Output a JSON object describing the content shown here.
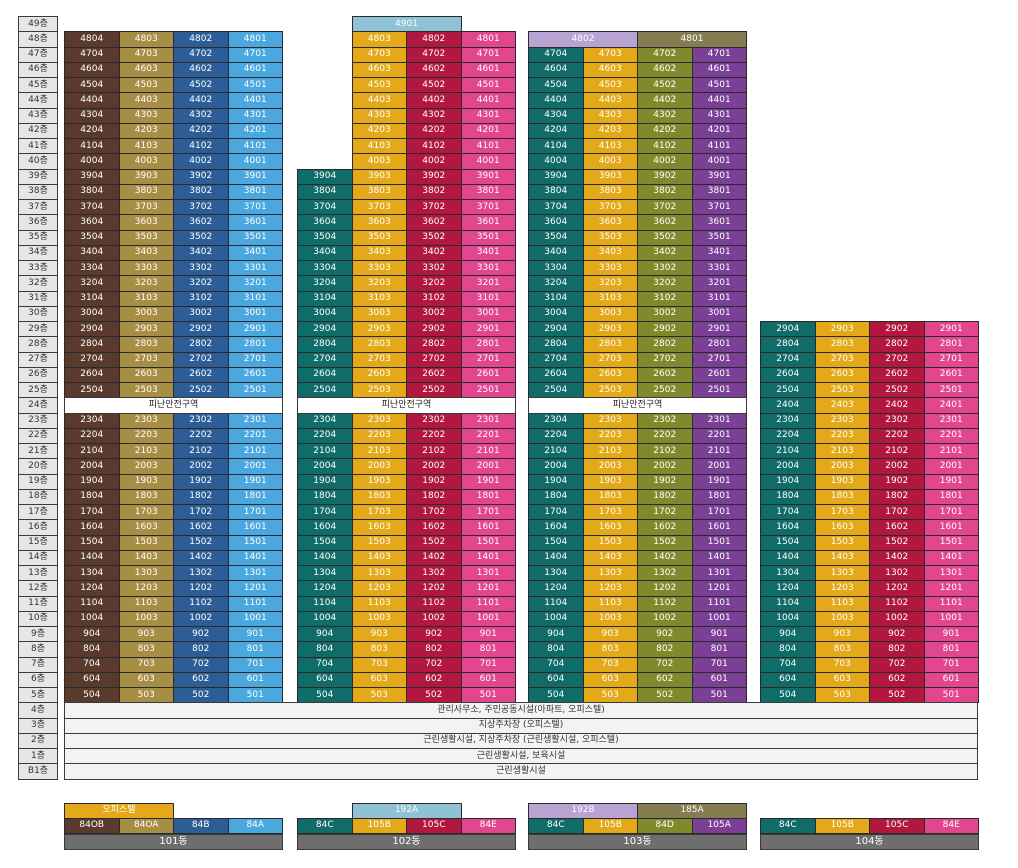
{
  "floors": [
    "49층",
    "48층",
    "47층",
    "46층",
    "45층",
    "44층",
    "43층",
    "42층",
    "41층",
    "40층",
    "39층",
    "38층",
    "37층",
    "36층",
    "35층",
    "34층",
    "33층",
    "32층",
    "31층",
    "30층",
    "29층",
    "28층",
    "27층",
    "26층",
    "25층",
    "24층",
    "23층",
    "22층",
    "21층",
    "20층",
    "19층",
    "18층",
    "17층",
    "16층",
    "15층",
    "14층",
    "13층",
    "12층",
    "11층",
    "10층",
    "9층",
    "8층",
    "7층",
    "6층",
    "5층",
    "4층",
    "3층",
    "2층",
    "1층",
    "B1층"
  ],
  "refuge_label": "피난안전구역",
  "base_bands": [
    "관리사무소, 주민공동시설(아파트, 오피스텔)",
    "지상주차장 (오피스텔)",
    "근린생활시설, 지상주차장 (근린생활시설, 오피스텔)",
    "근린생활시설, 보육시설",
    "근린생활시설"
  ],
  "colors": {
    "84OB": "#5a3a2c",
    "84OA": "#a78e45",
    "84B_101": "#2c5d96",
    "84A_101": "#4aa8df",
    "84C": "#106c68",
    "105B": "#e3a918",
    "105C": "#b1173f",
    "84E": "#e2468e",
    "84D": "#7f8a2c",
    "105A": "#7b3f96",
    "192A": "#8ec2d4",
    "192B": "#b8a3d2",
    "185A": "#857c51",
    "officetel": "#e3a918"
  },
  "buildings": [
    {
      "id": "101",
      "name": "101동",
      "top_floor": 48,
      "refuge_floor": 24,
      "types": [
        "84OB",
        "84OA",
        "84B",
        "84A"
      ],
      "type_colors": [
        "#5a3a2c",
        "#a78e45",
        "#2c5d96",
        "#4aa8df"
      ],
      "column_suffix": [
        "04",
        "03",
        "02",
        "01"
      ],
      "legend_extra": "오피스텔",
      "penthouse_row": [],
      "penthouse_49": []
    },
    {
      "id": "102",
      "name": "102동",
      "top_floor": 39,
      "refuge_floor": 24,
      "types": [
        "84C",
        "105B",
        "105C",
        "84E"
      ],
      "type_colors": [
        "#106c68",
        "#e3a918",
        "#b1173f",
        "#e2468e"
      ],
      "column_suffix": [
        "04",
        "03",
        "02",
        "01"
      ],
      "cols_top_floor": [
        39,
        48,
        48,
        48
      ],
      "penthouse_49": [
        "4901"
      ],
      "legend_top": [
        "192A"
      ],
      "legend_top_colors": [
        "#8ec2d4"
      ]
    },
    {
      "id": "103",
      "name": "103동",
      "top_floor": 47,
      "refuge_floor": 24,
      "types": [
        "84C",
        "105B",
        "84D",
        "105A"
      ],
      "type_colors": [
        "#106c68",
        "#e3a918",
        "#7f8a2c",
        "#7b3f96"
      ],
      "column_suffix": [
        "04",
        "03",
        "02",
        "01"
      ],
      "row48": [
        "4802",
        "4801"
      ],
      "row48_colors": [
        "#b8a3d2",
        "#857c51"
      ],
      "legend_top": [
        "192B",
        "185A"
      ],
      "legend_top_colors": [
        "#b8a3d2",
        "#857c51"
      ]
    },
    {
      "id": "104",
      "name": "104동",
      "top_floor": 29,
      "refuge_floor": null,
      "types": [
        "84C",
        "105B",
        "105C",
        "84E"
      ],
      "type_colors": [
        "#106c68",
        "#e3a918",
        "#b1173f",
        "#e2468e"
      ],
      "column_suffix": [
        "04",
        "03",
        "02",
        "01"
      ]
    }
  ]
}
